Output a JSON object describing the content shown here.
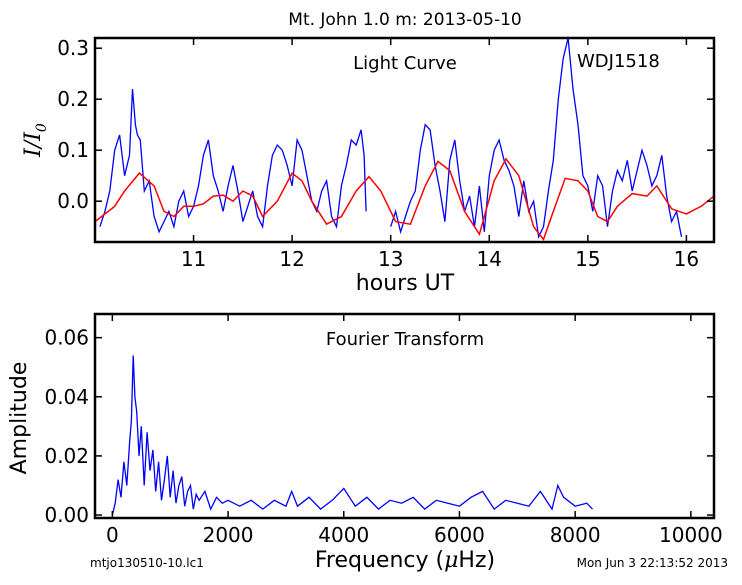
{
  "title": "Mt. John 1.0 m:  2013-05-10",
  "footer_left": "mtjo130510-10.lc1",
  "footer_right": "Mon Jun  3 22:13:52 2013",
  "colors": {
    "data": "#0000ff",
    "model": "#ff0000",
    "axes": "#000000"
  },
  "chart_data": [
    {
      "type": "line",
      "name": "light-curve",
      "annotation": "Light Curve",
      "object_label": "WDJ1518",
      "xlabel": "hours UT",
      "ylabel_main": "I/I",
      "ylabel_sub": "0",
      "xlim": [
        10.0,
        16.28
      ],
      "ylim": [
        -0.08,
        0.32
      ],
      "xticks": [
        11,
        12,
        13,
        14,
        15,
        16
      ],
      "xtick_labels": [
        "11",
        "12",
        "13",
        "14",
        "15",
        "16"
      ],
      "yticks": [
        0.0,
        0.1,
        0.2,
        0.3
      ],
      "ytick_labels": [
        "0.0",
        "0.1",
        "0.2",
        "0.3"
      ],
      "grid": false,
      "series": [
        {
          "role": "data",
          "color": "#0000ff",
          "segments": [
            {
              "x": [
                10.05,
                10.1,
                10.15,
                10.2,
                10.25,
                10.3,
                10.35,
                10.38,
                10.41,
                10.43,
                10.46,
                10.5,
                10.55,
                10.6,
                10.65,
                10.7,
                10.75,
                10.8,
                10.85,
                10.9,
                10.95,
                11.0,
                11.05,
                11.1,
                11.15,
                11.2,
                11.25,
                11.3,
                11.35,
                11.4,
                11.45,
                11.5,
                11.55,
                11.6,
                11.65,
                11.7,
                11.75,
                11.8,
                11.85,
                11.9,
                11.95,
                12.0,
                12.05,
                12.1,
                12.15,
                12.2,
                12.25,
                12.3,
                12.35,
                12.4,
                12.45,
                12.5,
                12.55,
                12.6,
                12.65,
                12.7,
                12.73,
                12.75
              ],
              "y": [
                -0.05,
                -0.02,
                0.02,
                0.1,
                0.13,
                0.05,
                0.09,
                0.22,
                0.15,
                0.13,
                0.12,
                0.02,
                0.04,
                -0.03,
                -0.06,
                -0.04,
                -0.02,
                -0.05,
                0.0,
                0.02,
                -0.03,
                -0.01,
                0.03,
                0.09,
                0.12,
                0.05,
                0.02,
                -0.02,
                0.03,
                0.07,
                0.02,
                -0.04,
                -0.01,
                0.02,
                -0.03,
                -0.05,
                0.03,
                0.09,
                0.11,
                0.1,
                0.07,
                0.03,
                0.12,
                0.1,
                0.05,
                0.0,
                -0.02,
                0.02,
                0.04,
                -0.03,
                -0.05,
                0.03,
                0.07,
                0.12,
                0.11,
                0.14,
                0.09,
                -0.02
              ]
            },
            {
              "x": [
                13.0,
                13.05,
                13.1,
                13.15,
                13.2,
                13.25,
                13.3,
                13.35,
                13.4,
                13.45,
                13.5,
                13.55,
                13.6,
                13.65,
                13.7,
                13.75,
                13.8,
                13.85,
                13.9,
                13.95,
                14.0,
                14.05,
                14.1,
                14.15,
                14.2,
                14.25,
                14.3,
                14.35,
                14.4,
                14.45,
                14.5,
                14.55,
                14.6,
                14.65,
                14.7,
                14.75,
                14.8,
                14.85,
                14.9,
                14.95,
                15.0,
                15.05,
                15.1,
                15.15,
                15.2,
                15.25,
                15.3,
                15.35,
                15.4,
                15.45,
                15.5,
                15.55,
                15.6,
                15.65,
                15.7,
                15.75,
                15.8,
                15.85,
                15.9,
                15.95
              ],
              "y": [
                -0.05,
                -0.02,
                -0.06,
                -0.03,
                0.0,
                0.02,
                0.1,
                0.15,
                0.14,
                0.07,
                0.02,
                -0.04,
                0.08,
                0.12,
                0.04,
                -0.02,
                0.01,
                -0.05,
                0.03,
                -0.06,
                0.05,
                0.1,
                0.12,
                0.08,
                0.06,
                0.03,
                -0.03,
                0.04,
                -0.02,
                0.0,
                -0.07,
                -0.05,
                0.02,
                0.08,
                0.2,
                0.28,
                0.32,
                0.22,
                0.15,
                0.05,
                0.03,
                -0.02,
                0.05,
                0.03,
                -0.05,
                0.02,
                0.06,
                0.04,
                0.08,
                0.02,
                0.06,
                0.1,
                0.07,
                0.03,
                0.05,
                0.09,
                0.01,
                -0.04,
                -0.02,
                -0.07
              ]
            }
          ]
        },
        {
          "role": "model",
          "color": "#ff0000",
          "x": [
            10.0,
            10.2,
            10.3,
            10.45,
            10.6,
            10.7,
            10.8,
            10.9,
            11.0,
            11.1,
            11.2,
            11.3,
            11.4,
            11.5,
            11.6,
            11.7,
            11.85,
            12.0,
            12.1,
            12.2,
            12.35,
            12.5,
            12.65,
            12.78,
            12.9,
            13.05,
            13.2,
            13.35,
            13.48,
            13.6,
            13.75,
            13.9,
            14.05,
            14.17,
            14.3,
            14.45,
            14.55,
            14.65,
            14.77,
            14.9,
            15.0,
            15.1,
            15.2,
            15.3,
            15.45,
            15.6,
            15.7,
            15.85,
            16.0,
            16.15,
            16.28
          ],
          "y": [
            -0.04,
            -0.01,
            0.02,
            0.055,
            0.03,
            -0.02,
            -0.03,
            -0.01,
            -0.01,
            -0.005,
            0.01,
            0.012,
            0.0,
            0.02,
            0.01,
            -0.03,
            0.0,
            0.055,
            0.04,
            0.0,
            -0.045,
            -0.03,
            0.02,
            0.048,
            0.02,
            -0.04,
            -0.045,
            0.03,
            0.078,
            0.06,
            -0.02,
            -0.065,
            0.04,
            0.083,
            0.05,
            -0.05,
            -0.075,
            -0.02,
            0.045,
            0.04,
            0.02,
            -0.03,
            -0.04,
            -0.01,
            0.015,
            0.01,
            0.03,
            -0.015,
            -0.025,
            -0.01,
            0.01
          ]
        }
      ]
    },
    {
      "type": "line",
      "name": "fourier-transform",
      "annotation": "Fourier Transform",
      "xlabel_prefix": "Frequency (",
      "xlabel_mu": "μ",
      "xlabel_suffix": "Hz)",
      "ylabel": "Amplitude",
      "xlim": [
        -300,
        10400
      ],
      "ylim": [
        -0.001,
        0.068
      ],
      "xticks": [
        0,
        2000,
        4000,
        6000,
        8000,
        10000
      ],
      "xtick_labels": [
        "0",
        "2000",
        "4000",
        "6000",
        "8000",
        "10000"
      ],
      "yticks": [
        0.0,
        0.02,
        0.04,
        0.06
      ],
      "ytick_labels": [
        "0.00",
        "0.02",
        "0.04",
        "0.06"
      ],
      "grid": false,
      "series": [
        {
          "role": "amplitude",
          "color": "#0000ff",
          "x": [
            0,
            50,
            100,
            150,
            200,
            250,
            300,
            330,
            360,
            390,
            420,
            460,
            500,
            550,
            600,
            650,
            700,
            750,
            800,
            850,
            900,
            950,
            1000,
            1050,
            1100,
            1150,
            1200,
            1250,
            1300,
            1350,
            1400,
            1450,
            1500,
            1600,
            1700,
            1800,
            1900,
            2000,
            2200,
            2400,
            2600,
            2800,
            3000,
            3100,
            3200,
            3400,
            3600,
            3800,
            4000,
            4200,
            4400,
            4600,
            4800,
            5000,
            5200,
            5400,
            5600,
            5800,
            6000,
            6200,
            6400,
            6600,
            6800,
            7000,
            7200,
            7400,
            7600,
            7700,
            7800,
            8000,
            8200,
            8300
          ],
          "y": [
            0.0,
            0.004,
            0.012,
            0.006,
            0.018,
            0.01,
            0.025,
            0.032,
            0.054,
            0.04,
            0.035,
            0.02,
            0.03,
            0.01,
            0.028,
            0.015,
            0.022,
            0.008,
            0.018,
            0.005,
            0.012,
            0.02,
            0.006,
            0.015,
            0.004,
            0.01,
            0.013,
            0.003,
            0.008,
            0.01,
            0.002,
            0.007,
            0.005,
            0.008,
            0.002,
            0.006,
            0.004,
            0.005,
            0.003,
            0.005,
            0.002,
            0.005,
            0.003,
            0.008,
            0.003,
            0.006,
            0.002,
            0.005,
            0.009,
            0.003,
            0.006,
            0.002,
            0.005,
            0.004,
            0.006,
            0.002,
            0.005,
            0.004,
            0.003,
            0.006,
            0.008,
            0.002,
            0.005,
            0.004,
            0.003,
            0.008,
            0.002,
            0.01,
            0.006,
            0.003,
            0.004,
            0.002
          ]
        }
      ]
    }
  ]
}
